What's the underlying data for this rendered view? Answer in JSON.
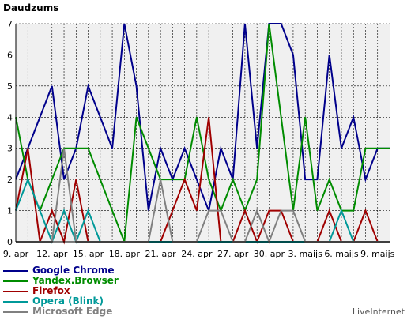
{
  "chart_data": {
    "type": "line",
    "ylabel": "Daudzums",
    "ylim": [
      0,
      7
    ],
    "yticks": [
      0,
      1,
      2,
      3,
      4,
      5,
      6,
      7
    ],
    "grid": true,
    "legend_position": "bottom-left",
    "x": [
      "9. apr",
      "10. apr",
      "11. apr",
      "12. apr",
      "13. apr",
      "14. apr",
      "15. apr",
      "16. apr",
      "17. apr",
      "18. apr",
      "19. apr",
      "20. apr",
      "21. apr",
      "22. apr",
      "23. apr",
      "24. apr",
      "25. apr",
      "26. apr",
      "27. apr",
      "28. apr",
      "29. apr",
      "30. apr",
      "1. maijs",
      "2. maijs",
      "3. maijs",
      "4. maijs",
      "5. maijs",
      "6. maijs",
      "7. maijs",
      "8. maijs",
      "9. maijs",
      "10. maijs"
    ],
    "xtick_labels": [
      {
        "index": 0,
        "label": "9. apr"
      },
      {
        "index": 3,
        "label": "12. apr"
      },
      {
        "index": 6,
        "label": "15. apr"
      },
      {
        "index": 9,
        "label": "18. apr"
      },
      {
        "index": 12,
        "label": "21. apr"
      },
      {
        "index": 15,
        "label": "24. apr"
      },
      {
        "index": 18,
        "label": "27. apr"
      },
      {
        "index": 21,
        "label": "30. apr"
      },
      {
        "index": 24,
        "label": "3. maijs"
      },
      {
        "index": 27,
        "label": "6. maijs"
      },
      {
        "index": 30,
        "label": "9. maijs"
      }
    ],
    "series": [
      {
        "name": "Google Chrome",
        "color": "#00008b",
        "values": [
          2,
          3,
          4,
          5,
          2,
          3,
          5,
          4,
          3,
          7,
          5,
          1,
          3,
          2,
          3,
          2,
          1,
          3,
          2,
          7,
          3,
          7,
          7,
          6,
          2,
          2,
          6,
          3,
          4,
          2,
          3,
          3
        ]
      },
      {
        "name": "Yandex.Browser",
        "color": "#008c00",
        "values": [
          4,
          2,
          1,
          2,
          3,
          3,
          3,
          2,
          1,
          0,
          4,
          3,
          2,
          2,
          2,
          4,
          2,
          1,
          2,
          1,
          2,
          7,
          4,
          1,
          4,
          1,
          2,
          1,
          1,
          3,
          3,
          3
        ]
      },
      {
        "name": "Firefox",
        "color": "#a00000",
        "values": [
          1,
          3,
          0,
          1,
          0,
          2,
          0,
          0,
          0,
          0,
          0,
          0,
          0,
          1,
          2,
          1,
          4,
          0,
          0,
          1,
          0,
          1,
          1,
          0,
          0,
          0,
          1,
          0,
          0,
          1,
          0,
          0
        ]
      },
      {
        "name": "Opera (Blink)",
        "color": "#009999",
        "values": [
          1,
          2,
          1,
          0,
          1,
          0,
          1,
          0,
          0,
          0,
          0,
          0,
          0,
          0,
          0,
          0,
          0,
          0,
          0,
          0,
          0,
          0,
          0,
          0,
          0,
          0,
          0,
          1,
          0,
          0,
          0,
          0
        ]
      },
      {
        "name": "Microsoft Edge",
        "color": "#808080",
        "values": [
          0,
          0,
          0,
          0,
          3,
          0,
          0,
          0,
          0,
          0,
          0,
          0,
          2,
          0,
          0,
          0,
          1,
          1,
          0,
          0,
          1,
          0,
          1,
          1,
          0,
          0,
          0,
          0,
          0,
          0,
          0,
          0
        ]
      }
    ]
  },
  "brand": "LiveInternet"
}
